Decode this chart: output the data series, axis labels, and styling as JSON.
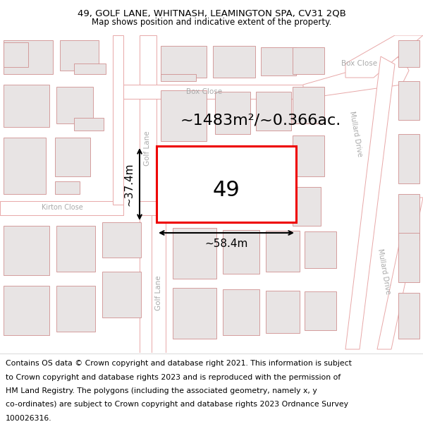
{
  "title_line1": "49, GOLF LANE, WHITNASH, LEAMINGTON SPA, CV31 2QB",
  "title_line2": "Map shows position and indicative extent of the property.",
  "footer_lines": [
    "Contains OS data © Crown copyright and database right 2021. This information is subject",
    "to Crown copyright and database rights 2023 and is reproduced with the permission of",
    "HM Land Registry. The polygons (including the associated geometry, namely x, y",
    "co-ordinates) are subject to Crown copyright and database rights 2023 Ordnance Survey",
    "100026316."
  ],
  "area_label": "~1483m²/~0.366ac.",
  "property_number": "49",
  "width_label": "~58.4m",
  "height_label": "~37.4m",
  "bg_color": "#f9f6f6",
  "road_fill": "#ffffff",
  "road_edge": "#e8a8a8",
  "road_edge_lw": 0.7,
  "building_fill": "#e8e4e4",
  "building_edge": "#d09090",
  "building_edge_lw": 0.6,
  "property_fill": "#ffffff",
  "property_stroke": "#ee0000",
  "property_lw": 2.2,
  "dim_color": "#000000",
  "title_bg": "#ffffff",
  "footer_bg": "#ffffff",
  "street_label_color": "#aaaaaa",
  "street_label_fs": 7.5,
  "title_fs1": 9.5,
  "title_fs2": 8.5,
  "footer_fs": 7.8,
  "area_fs": 16,
  "number_fs": 22,
  "dim_fs": 11
}
